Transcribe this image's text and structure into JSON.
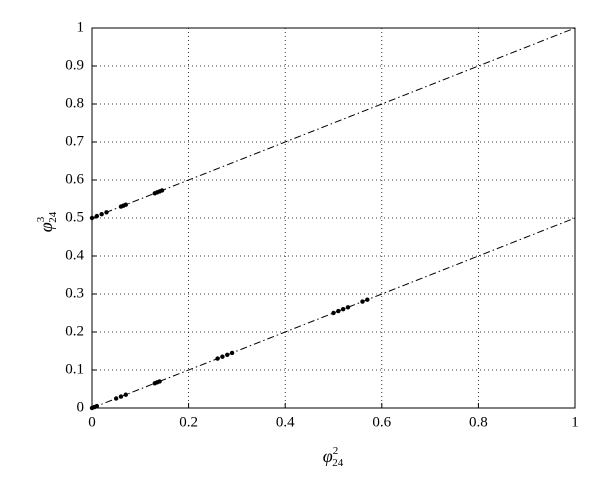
{
  "chart_data": {
    "type": "line",
    "xlabel": {
      "symbol": "φ",
      "sup": "2",
      "sub": "24"
    },
    "ylabel": {
      "symbol": "φ",
      "sup": "3",
      "sub": "24"
    },
    "xlim": [
      0,
      1
    ],
    "ylim": [
      0,
      1
    ],
    "xticks": [
      0,
      0.2,
      0.4,
      0.6,
      0.8,
      1
    ],
    "yticks": [
      0,
      0.1,
      0.2,
      0.3,
      0.4,
      0.5,
      0.6,
      0.7,
      0.8,
      0.9,
      1
    ],
    "grid": true,
    "series": [
      {
        "style": "dash-dot",
        "color": "#000000",
        "x": [
          0,
          1
        ],
        "values": [
          0.5,
          1
        ]
      },
      {
        "style": "dash-dot",
        "color": "#000000",
        "x": [
          0,
          1
        ],
        "values": [
          0,
          0.5
        ]
      },
      {
        "style": "markers",
        "color": "#000000",
        "x": [
          0,
          0.01,
          0.02,
          0.03,
          0.06,
          0.065,
          0.07,
          0.13,
          0.135,
          0.14,
          0.145
        ],
        "values": [
          0.5,
          0.505,
          0.51,
          0.515,
          0.53,
          0.5325,
          0.535,
          0.565,
          0.5675,
          0.57,
          0.5725
        ]
      },
      {
        "style": "markers",
        "color": "#000000",
        "x": [
          0,
          0.005,
          0.01,
          0.05,
          0.06,
          0.07,
          0.13,
          0.135,
          0.14,
          0.26,
          0.27,
          0.28,
          0.29,
          0.5,
          0.51,
          0.52,
          0.53,
          0.56,
          0.57
        ],
        "values": [
          0,
          0.0025,
          0.005,
          0.025,
          0.03,
          0.035,
          0.065,
          0.0675,
          0.07,
          0.13,
          0.135,
          0.14,
          0.145,
          0.25,
          0.255,
          0.26,
          0.265,
          0.28,
          0.285
        ]
      }
    ]
  }
}
